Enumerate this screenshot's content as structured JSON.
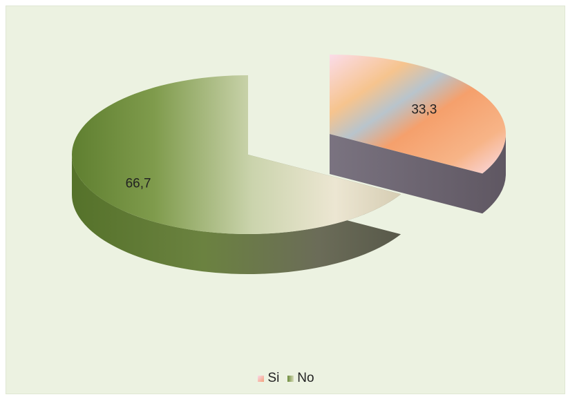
{
  "chart_data": {
    "type": "pie",
    "style": "3d-exploded",
    "categories": [
      "Si",
      "No"
    ],
    "values": [
      33.3,
      66.7
    ],
    "data_labels": [
      "33,3",
      "66,7"
    ],
    "legend": {
      "position": "bottom",
      "entries": [
        "Si",
        "No"
      ]
    },
    "colors": {
      "Si": [
        "#fad9e8",
        "#f5b98a",
        "#b7c3cc",
        "#f49a6a"
      ],
      "No": [
        "#6b8a3a",
        "#c9d6a6",
        "#ede6d1",
        "#d6cfb6"
      ],
      "Si_side": "#6e6470",
      "No_side": "#5d6a3c",
      "background": "#ecf2e1"
    },
    "title": "",
    "xlabel": "",
    "ylabel": ""
  }
}
